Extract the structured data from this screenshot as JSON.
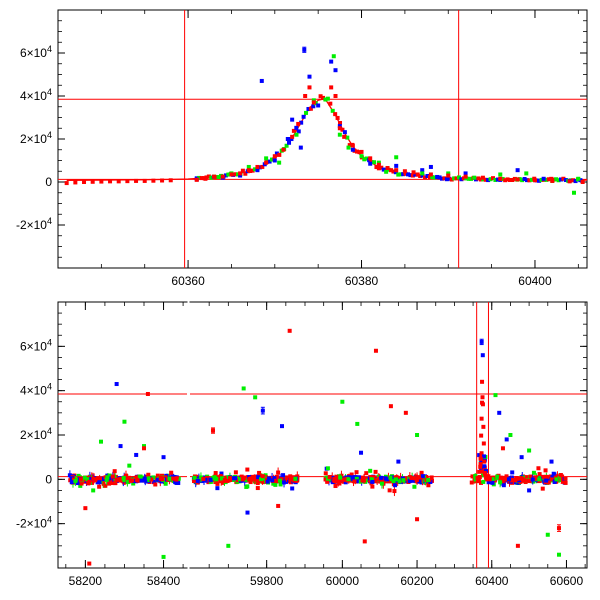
{
  "chart_data": [
    {
      "type": "scatter",
      "title": "",
      "xlabel": "",
      "ylabel": "",
      "xlim": [
        60345,
        60406
      ],
      "ylim": [
        -40000,
        80000
      ],
      "grid": false,
      "x_ticks": [
        {
          "value": 60360,
          "label": "60360"
        },
        {
          "value": 60380,
          "label": "60380"
        },
        {
          "value": 60400,
          "label": "60400"
        }
      ],
      "y_ticks": [
        {
          "value": 60000,
          "label": "6×10",
          "exp": "4"
        },
        {
          "value": 40000,
          "label": "4×10",
          "exp": "4"
        },
        {
          "value": 20000,
          "label": "2×10",
          "exp": "4"
        },
        {
          "value": 0,
          "label": "0",
          "exp": ""
        },
        {
          "value": -20000,
          "label": "-2×10",
          "exp": "4"
        }
      ],
      "reference_lines": {
        "horizontal": [
          38500,
          1200
        ],
        "vertical": [
          60359.6,
          60391.2
        ]
      },
      "model_curve": {
        "color": "#ff0000",
        "x": [
          60346,
          60350,
          60354,
          60358,
          60360,
          60362,
          60364,
          60366,
          60368,
          60369,
          60370,
          60371,
          60372,
          60373,
          60374,
          60375,
          60375.5,
          60376,
          60377,
          60378,
          60379,
          60380,
          60382,
          60384,
          60386,
          60388,
          60390,
          60394,
          60398,
          60402,
          60406
        ],
        "y": [
          800,
          900,
          1000,
          1200,
          1400,
          1900,
          2700,
          4000,
          6200,
          8200,
          11000,
          15000,
          20500,
          27500,
          34500,
          38000,
          38500,
          37500,
          31000,
          23000,
          16500,
          12000,
          6800,
          4300,
          3000,
          2200,
          1700,
          1300,
          1100,
          1000,
          900
        ]
      },
      "series": [
        {
          "color": "#0000ff",
          "points": [
            {
              "x": 60361,
              "y": 1200
            },
            {
              "x": 60364,
              "y": 2000
            },
            {
              "x": 60366,
              "y": 3000
            },
            {
              "x": 60368,
              "y": 5500
            },
            {
              "x": 60368.5,
              "y": 47000
            },
            {
              "x": 60370,
              "y": 10000
            },
            {
              "x": 60371.5,
              "y": 20000
            },
            {
              "x": 60372,
              "y": 29000
            },
            {
              "x": 60373,
              "y": 16000
            },
            {
              "x": 60373.4,
              "y": 61500,
              "err": 1200
            },
            {
              "x": 60374,
              "y": 49000
            },
            {
              "x": 60376.5,
              "y": 56000
            },
            {
              "x": 60377,
              "y": 52000
            },
            {
              "x": 60377.5,
              "y": 26000
            },
            {
              "x": 60379,
              "y": 15000
            },
            {
              "x": 60381,
              "y": 8500
            },
            {
              "x": 60384,
              "y": 7500
            },
            {
              "x": 60387,
              "y": 5500
            },
            {
              "x": 60388,
              "y": 7000
            },
            {
              "x": 60392,
              "y": 4000
            },
            {
              "x": 60398,
              "y": 5500
            },
            {
              "x": 60401,
              "y": 1500
            },
            {
              "x": 60404,
              "y": 500
            }
          ]
        },
        {
          "color": "#00ee00",
          "points": [
            {
              "x": 60363,
              "y": 2500
            },
            {
              "x": 60365,
              "y": 4000
            },
            {
              "x": 60367,
              "y": 7000
            },
            {
              "x": 60369,
              "y": 11000
            },
            {
              "x": 60370.5,
              "y": 9000
            },
            {
              "x": 60372.5,
              "y": 22000
            },
            {
              "x": 60374.5,
              "y": 38000
            },
            {
              "x": 60376.8,
              "y": 58500
            },
            {
              "x": 60377.5,
              "y": 22000
            },
            {
              "x": 60378.5,
              "y": 16000
            },
            {
              "x": 60380,
              "y": 12000
            },
            {
              "x": 60382,
              "y": 9000
            },
            {
              "x": 60384,
              "y": 11500
            },
            {
              "x": 60387,
              "y": 4000
            },
            {
              "x": 60390,
              "y": 4000
            },
            {
              "x": 60393,
              "y": 2000
            },
            {
              "x": 60396,
              "y": 3500
            },
            {
              "x": 60399,
              "y": 4000
            },
            {
              "x": 60402,
              "y": 500
            },
            {
              "x": 60404.5,
              "y": -5000
            },
            {
              "x": 60405,
              "y": 1500
            }
          ]
        },
        {
          "color": "#ff0000",
          "points": [
            {
              "x": 60346,
              "y": -500
            },
            {
              "x": 60347,
              "y": -200
            },
            {
              "x": 60348,
              "y": 0
            },
            {
              "x": 60349,
              "y": 100
            },
            {
              "x": 60350,
              "y": 200
            },
            {
              "x": 60351,
              "y": 300
            },
            {
              "x": 60352,
              "y": 300
            },
            {
              "x": 60353,
              "y": 400
            },
            {
              "x": 60354,
              "y": 500
            },
            {
              "x": 60355,
              "y": 500
            },
            {
              "x": 60356,
              "y": 600
            },
            {
              "x": 60357,
              "y": 700
            },
            {
              "x": 60358,
              "y": 800
            },
            {
              "x": 60361,
              "y": 1000
            },
            {
              "x": 60362,
              "y": 1500
            },
            {
              "x": 60363,
              "y": 2500
            },
            {
              "x": 60364,
              "y": 2500
            },
            {
              "x": 60365,
              "y": 3500
            },
            {
              "x": 60366,
              "y": 4000
            },
            {
              "x": 60367,
              "y": 5500
            },
            {
              "x": 60368,
              "y": 7000
            },
            {
              "x": 60369,
              "y": 9000
            },
            {
              "x": 60370,
              "y": 12000
            },
            {
              "x": 60371,
              "y": 15000
            },
            {
              "x": 60372,
              "y": 21000
            },
            {
              "x": 60372.7,
              "y": 27000
            },
            {
              "x": 60373.5,
              "y": 40000
            },
            {
              "x": 60374,
              "y": 44000
            },
            {
              "x": 60374.5,
              "y": 37000
            },
            {
              "x": 60376.5,
              "y": 44000
            },
            {
              "x": 60377,
              "y": 40000
            },
            {
              "x": 60377.5,
              "y": 25000
            },
            {
              "x": 60378,
              "y": 21000
            },
            {
              "x": 60379,
              "y": 17000
            },
            {
              "x": 60380,
              "y": 14000
            },
            {
              "x": 60381,
              "y": 11000
            },
            {
              "x": 60382,
              "y": 8000
            },
            {
              "x": 60383,
              "y": 6500
            },
            {
              "x": 60384,
              "y": 5500
            },
            {
              "x": 60385,
              "y": 5000
            },
            {
              "x": 60386,
              "y": 4500
            },
            {
              "x": 60388,
              "y": 3500
            },
            {
              "x": 60390,
              "y": 3000
            },
            {
              "x": 60392,
              "y": 2500
            },
            {
              "x": 60394,
              "y": 2000
            },
            {
              "x": 60396,
              "y": 1500
            },
            {
              "x": 60398,
              "y": 1200
            },
            {
              "x": 60400,
              "y": 800
            },
            {
              "x": 60402,
              "y": 500
            },
            {
              "x": 60404,
              "y": 300
            },
            {
              "x": 60405.5,
              "y": 0
            }
          ]
        }
      ]
    },
    {
      "type": "scatter",
      "title": "",
      "xlabel": "",
      "ylabel": "",
      "xlim": [
        58130,
        60655
      ],
      "x_axis_breaks": "three segments: 58130–58460, 59600–59900, 59900–60655",
      "ylim": [
        -40000,
        80000
      ],
      "grid": false,
      "x_ticks": [
        {
          "value": 58200,
          "label": "58200"
        },
        {
          "value": 58400,
          "label": "58400"
        },
        {
          "value": 59800,
          "label": "59800"
        },
        {
          "value": 60000,
          "label": "60000"
        },
        {
          "value": 60200,
          "label": "60200"
        },
        {
          "value": 60400,
          "label": "60400"
        },
        {
          "value": 60600,
          "label": "60600"
        }
      ],
      "y_ticks": [
        {
          "value": 60000,
          "label": "6×10",
          "exp": "4"
        },
        {
          "value": 40000,
          "label": "4×10",
          "exp": "4"
        },
        {
          "value": 20000,
          "label": "2×10",
          "exp": "4"
        },
        {
          "value": 0,
          "label": "0",
          "exp": ""
        },
        {
          "value": -20000,
          "label": "-2×10",
          "exp": "4"
        }
      ],
      "reference_lines": {
        "horizontal": [
          38500,
          1200
        ],
        "vertical": [
          60359.6,
          60391.2
        ]
      },
      "season_ranges": [
        [
          58160,
          58440
        ],
        [
          59610,
          59880
        ],
        [
          59955,
          60240
        ],
        [
          60345,
          60600
        ]
      ],
      "noise_amplitude": 2500,
      "series": [
        {
          "color": "#0000ff",
          "points": [
            {
              "x": 58280,
              "y": 43000
            },
            {
              "x": 58290,
              "y": 15000
            },
            {
              "x": 58330,
              "y": 11000
            },
            {
              "x": 58400,
              "y": 10000
            },
            {
              "x": 59790,
              "y": 31000,
              "err": 1500
            },
            {
              "x": 59840,
              "y": 24000
            },
            {
              "x": 59750,
              "y": -15000
            },
            {
              "x": 60050,
              "y": 12000
            },
            {
              "x": 60150,
              "y": 8000
            },
            {
              "x": 60373,
              "y": 62000,
              "err": 1200
            },
            {
              "x": 60376,
              "y": 56000
            },
            {
              "x": 60420,
              "y": 30000
            },
            {
              "x": 60440,
              "y": 18000
            },
            {
              "x": 60480,
              "y": 10000
            },
            {
              "x": 60500,
              "y": -5000
            },
            {
              "x": 60560,
              "y": 8000
            }
          ]
        },
        {
          "color": "#00ee00",
          "points": [
            {
              "x": 58220,
              "y": -5000
            },
            {
              "x": 58240,
              "y": 17000
            },
            {
              "x": 58300,
              "y": 26000
            },
            {
              "x": 58350,
              "y": 15000
            },
            {
              "x": 58400,
              "y": -35000
            },
            {
              "x": 59740,
              "y": 41000
            },
            {
              "x": 59770,
              "y": 37000
            },
            {
              "x": 59700,
              "y": -30000
            },
            {
              "x": 60000,
              "y": 35000
            },
            {
              "x": 60040,
              "y": 25000
            },
            {
              "x": 60200,
              "y": 20000
            },
            {
              "x": 60410,
              "y": 38000
            },
            {
              "x": 60450,
              "y": 20000
            },
            {
              "x": 60500,
              "y": 13000
            },
            {
              "x": 60550,
              "y": -25000
            },
            {
              "x": 60580,
              "y": -34000
            }
          ]
        },
        {
          "color": "#ff0000",
          "points": [
            {
              "x": 58200,
              "y": -13000
            },
            {
              "x": 58210,
              "y": -38000
            },
            {
              "x": 58350,
              "y": 14000
            },
            {
              "x": 58360,
              "y": 38500
            },
            {
              "x": 59660,
              "y": 22000,
              "err": 1200
            },
            {
              "x": 59860,
              "y": 67000
            },
            {
              "x": 59830,
              "y": -12000
            },
            {
              "x": 60090,
              "y": 58000
            },
            {
              "x": 60130,
              "y": 33000
            },
            {
              "x": 60170,
              "y": 30000
            },
            {
              "x": 60060,
              "y": -28000
            },
            {
              "x": 60200,
              "y": -18000
            },
            {
              "x": 60374,
              "y": 44000
            },
            {
              "x": 60430,
              "y": 14000
            },
            {
              "x": 60470,
              "y": -30000
            },
            {
              "x": 60580,
              "y": -22000,
              "err": 1500
            },
            {
              "x": 60525,
              "y": 5000
            }
          ]
        }
      ]
    }
  ]
}
